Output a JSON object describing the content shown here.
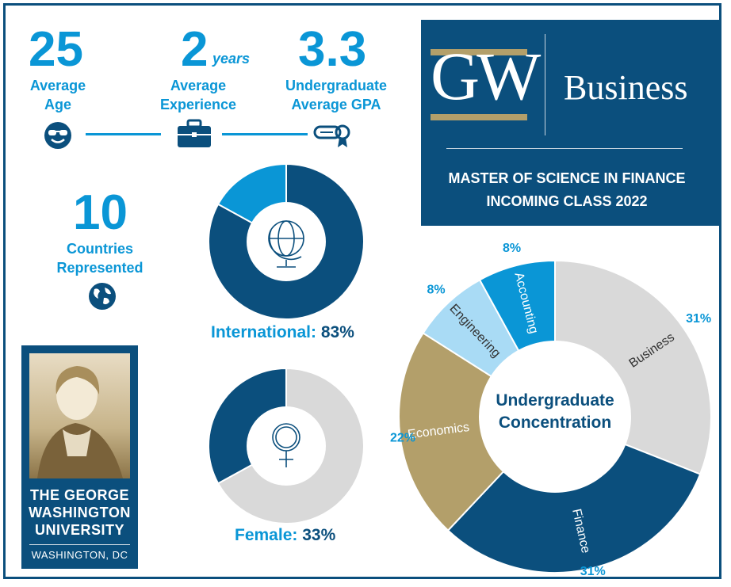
{
  "stats": {
    "age": {
      "value": "25",
      "label_line1": "Average",
      "label_line2": "Age",
      "icon": "sunglasses-face-icon"
    },
    "experience": {
      "value": "2",
      "unit": "years",
      "label_line1": "Average",
      "label_line2": "Experience",
      "icon": "briefcase-icon"
    },
    "gpa": {
      "value": "3.3",
      "label_line1": "Undergraduate",
      "label_line2": "Average GPA",
      "icon": "diploma-icon"
    },
    "countries": {
      "value": "10",
      "label_line1": "Countries",
      "label_line2": "Represented",
      "icon": "globe-icon"
    }
  },
  "banner": {
    "logo_text": "GW",
    "unit_text": "Business",
    "title_line1": "MASTER OF SCIENCE IN FINANCE",
    "title_line2": "INCOMING CLASS 2022"
  },
  "international": {
    "label": "International:",
    "value": "83%",
    "percent": 83,
    "icon": "globe-stand-icon"
  },
  "female": {
    "label": "Female:",
    "value": "33%",
    "percent": 33,
    "icon": "female-symbol-icon"
  },
  "seal": {
    "line1": "THE GEORGE",
    "line2": "WASHINGTON",
    "line3": "UNIVERSITY",
    "city": "WASHINGTON, DC"
  },
  "colors": {
    "navy": "#0b4f7d",
    "accent_blue": "#0a96d6",
    "light_blue": "#a9dbf5",
    "gold": "#b39f6a",
    "light_gray": "#d9d9d9"
  },
  "chart_data": {
    "type": "pie",
    "title": "Undergraduate Concentration",
    "center_line1": "Undergraduate",
    "center_line2": "Concentration",
    "categories": [
      "Business",
      "Finance",
      "Economics",
      "Engineering",
      "Accounting"
    ],
    "values": [
      31,
      31,
      22,
      8,
      8
    ],
    "labels": [
      "31%",
      "31%",
      "22%",
      "8%",
      "8%"
    ],
    "colors": [
      "#d9d9d9",
      "#0b4f7d",
      "#b39f6a",
      "#a9dbf5",
      "#0a96d6"
    ]
  }
}
